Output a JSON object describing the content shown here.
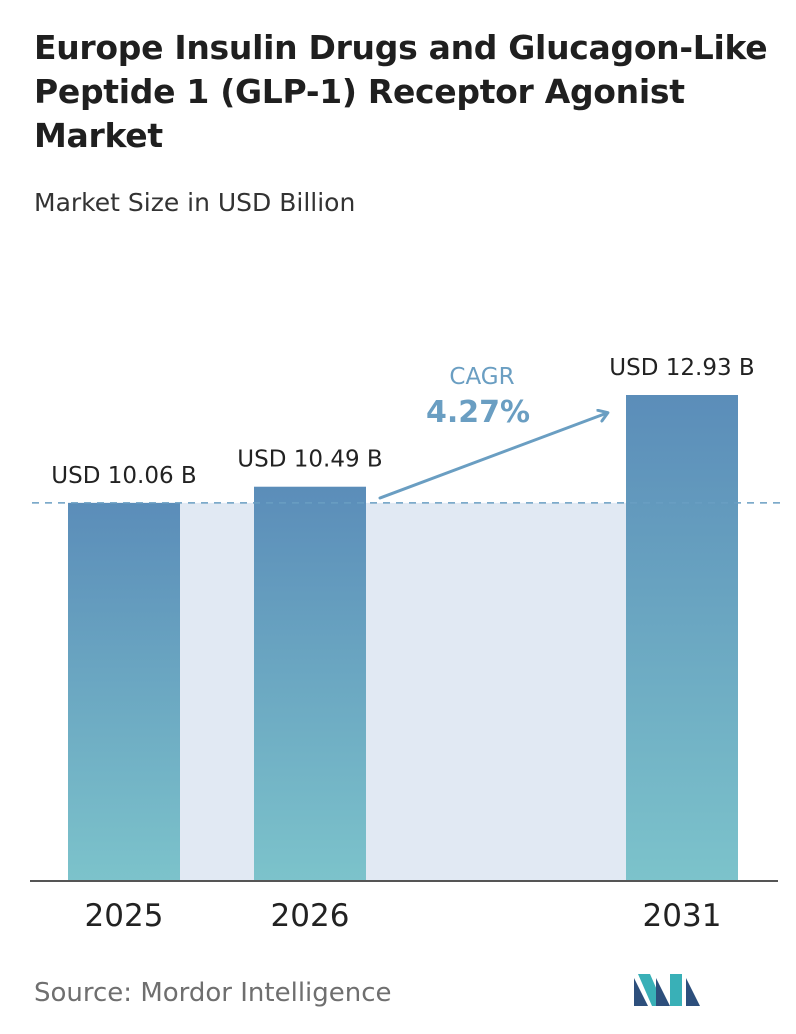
{
  "header": {
    "title": "Europe Insulin Drugs and Glucagon-Like Peptide 1 (GLP-1) Receptor Agonist Market",
    "subtitle": "Market Size in USD Billion"
  },
  "footer": {
    "source": "Source:  Mordor Intelligence"
  },
  "colors": {
    "bar_top": "#5b8db9",
    "bar_bottom": "#7cc3cb",
    "shade": "#e1e9f3",
    "accent": "#6a9ec2",
    "axis": "#555555"
  },
  "chart_data": {
    "type": "bar",
    "title": "Europe Insulin Drugs and Glucagon-Like Peptide 1 (GLP-1) Receptor Agonist Market",
    "subtitle": "Market Size in USD Billion",
    "categories": [
      "2025",
      "2026",
      "2031"
    ],
    "values": [
      10.06,
      10.49,
      12.93
    ],
    "value_labels": [
      "USD 10.06 B",
      "USD 10.49 B",
      "USD 12.93 B"
    ],
    "xlabel": "",
    "ylabel": "",
    "ylim": [
      0,
      12.93
    ],
    "grid": false,
    "legend": "none",
    "annotation": {
      "label": "CAGR",
      "value": "4.27%"
    }
  }
}
